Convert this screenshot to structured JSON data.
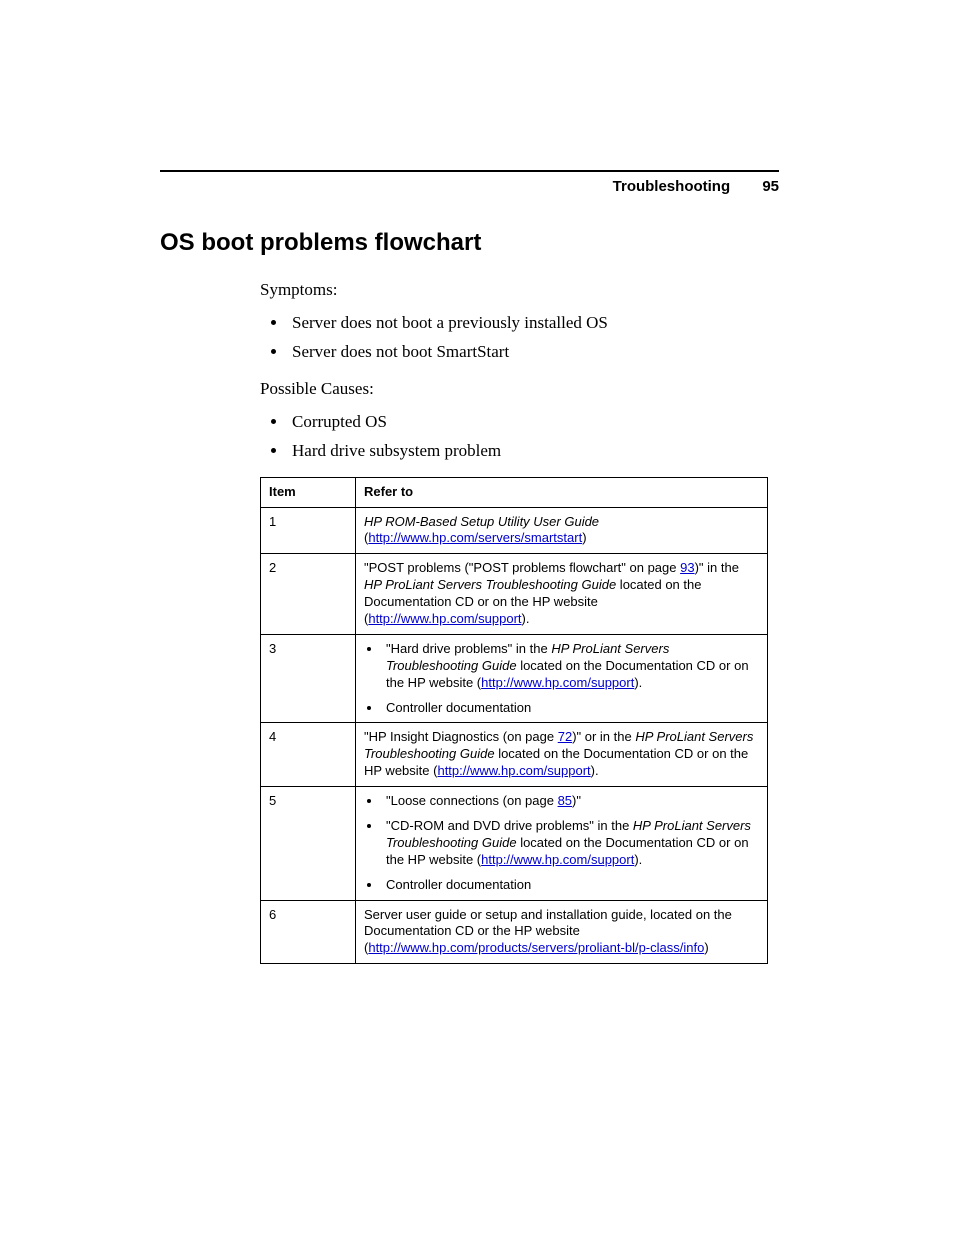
{
  "header": {
    "section": "Troubleshooting",
    "page_number": "95"
  },
  "title": "OS boot problems flowchart",
  "symptoms": {
    "label": "Symptoms:",
    "items": [
      "Server does not boot a previously installed OS",
      "Server does not boot SmartStart"
    ]
  },
  "causes": {
    "label": "Possible Causes:",
    "items": [
      "Corrupted OS",
      "Hard drive subsystem problem"
    ]
  },
  "table": {
    "columns": [
      "Item",
      "Refer to"
    ],
    "rows": {
      "r1": {
        "item": "1",
        "title_italic": "HP ROM-Based Setup Utility User Guide",
        "open_paren": "(",
        "link": "http://www.hp.com/servers/smartstart",
        "close_paren": ")"
      },
      "r2": {
        "item": "2",
        "t1": "\"POST problems (\"POST problems flowchart\" on page ",
        "page_link": "93",
        "t2": ")\" in the ",
        "guide_italic": "HP ProLiant Servers Troubleshooting Guide",
        "t3": " located on the Documentation CD or on the HP website (",
        "link": "http://www.hp.com/support",
        "t4": ")."
      },
      "r3": {
        "item": "3",
        "b1_t1": "\"Hard drive problems\" in the ",
        "b1_italic": "HP ProLiant Servers Troubleshooting Guide",
        "b1_t2": " located on the Documentation CD or on the HP website (",
        "b1_link": "http://www.hp.com/support",
        "b1_t3": ").",
        "b2": "Controller documentation"
      },
      "r4": {
        "item": "4",
        "t1": "\"HP Insight Diagnostics (on page ",
        "page_link": "72",
        "t2": ")\" or in the ",
        "guide_italic": "HP ProLiant Servers Troubleshooting Guide",
        "t3": " located on the Documentation CD or on the HP website (",
        "link": "http://www.hp.com/support",
        "t4": ")."
      },
      "r5": {
        "item": "5",
        "b1_t1": "\"Loose connections (on page ",
        "b1_page_link": "85",
        "b1_t2": ")\"",
        "b2_t1": "\"CD-ROM and DVD drive problems\" in the ",
        "b2_italic": "HP ProLiant Servers Troubleshooting Guide",
        "b2_t2": " located on the Documentation CD or on the HP website (",
        "b2_link": "http://www.hp.com/support",
        "b2_t3": ").",
        "b3": "Controller documentation"
      },
      "r6": {
        "item": "6",
        "t1": "Server user guide or setup and installation guide, located on the Documentation CD or the HP website (",
        "link": "http://www.hp.com/products/servers/proliant-bl/p-class/info",
        "t2": ")"
      }
    }
  },
  "colors": {
    "link": "#0000cc",
    "text": "#000000",
    "border": "#000000",
    "background": "#ffffff"
  }
}
